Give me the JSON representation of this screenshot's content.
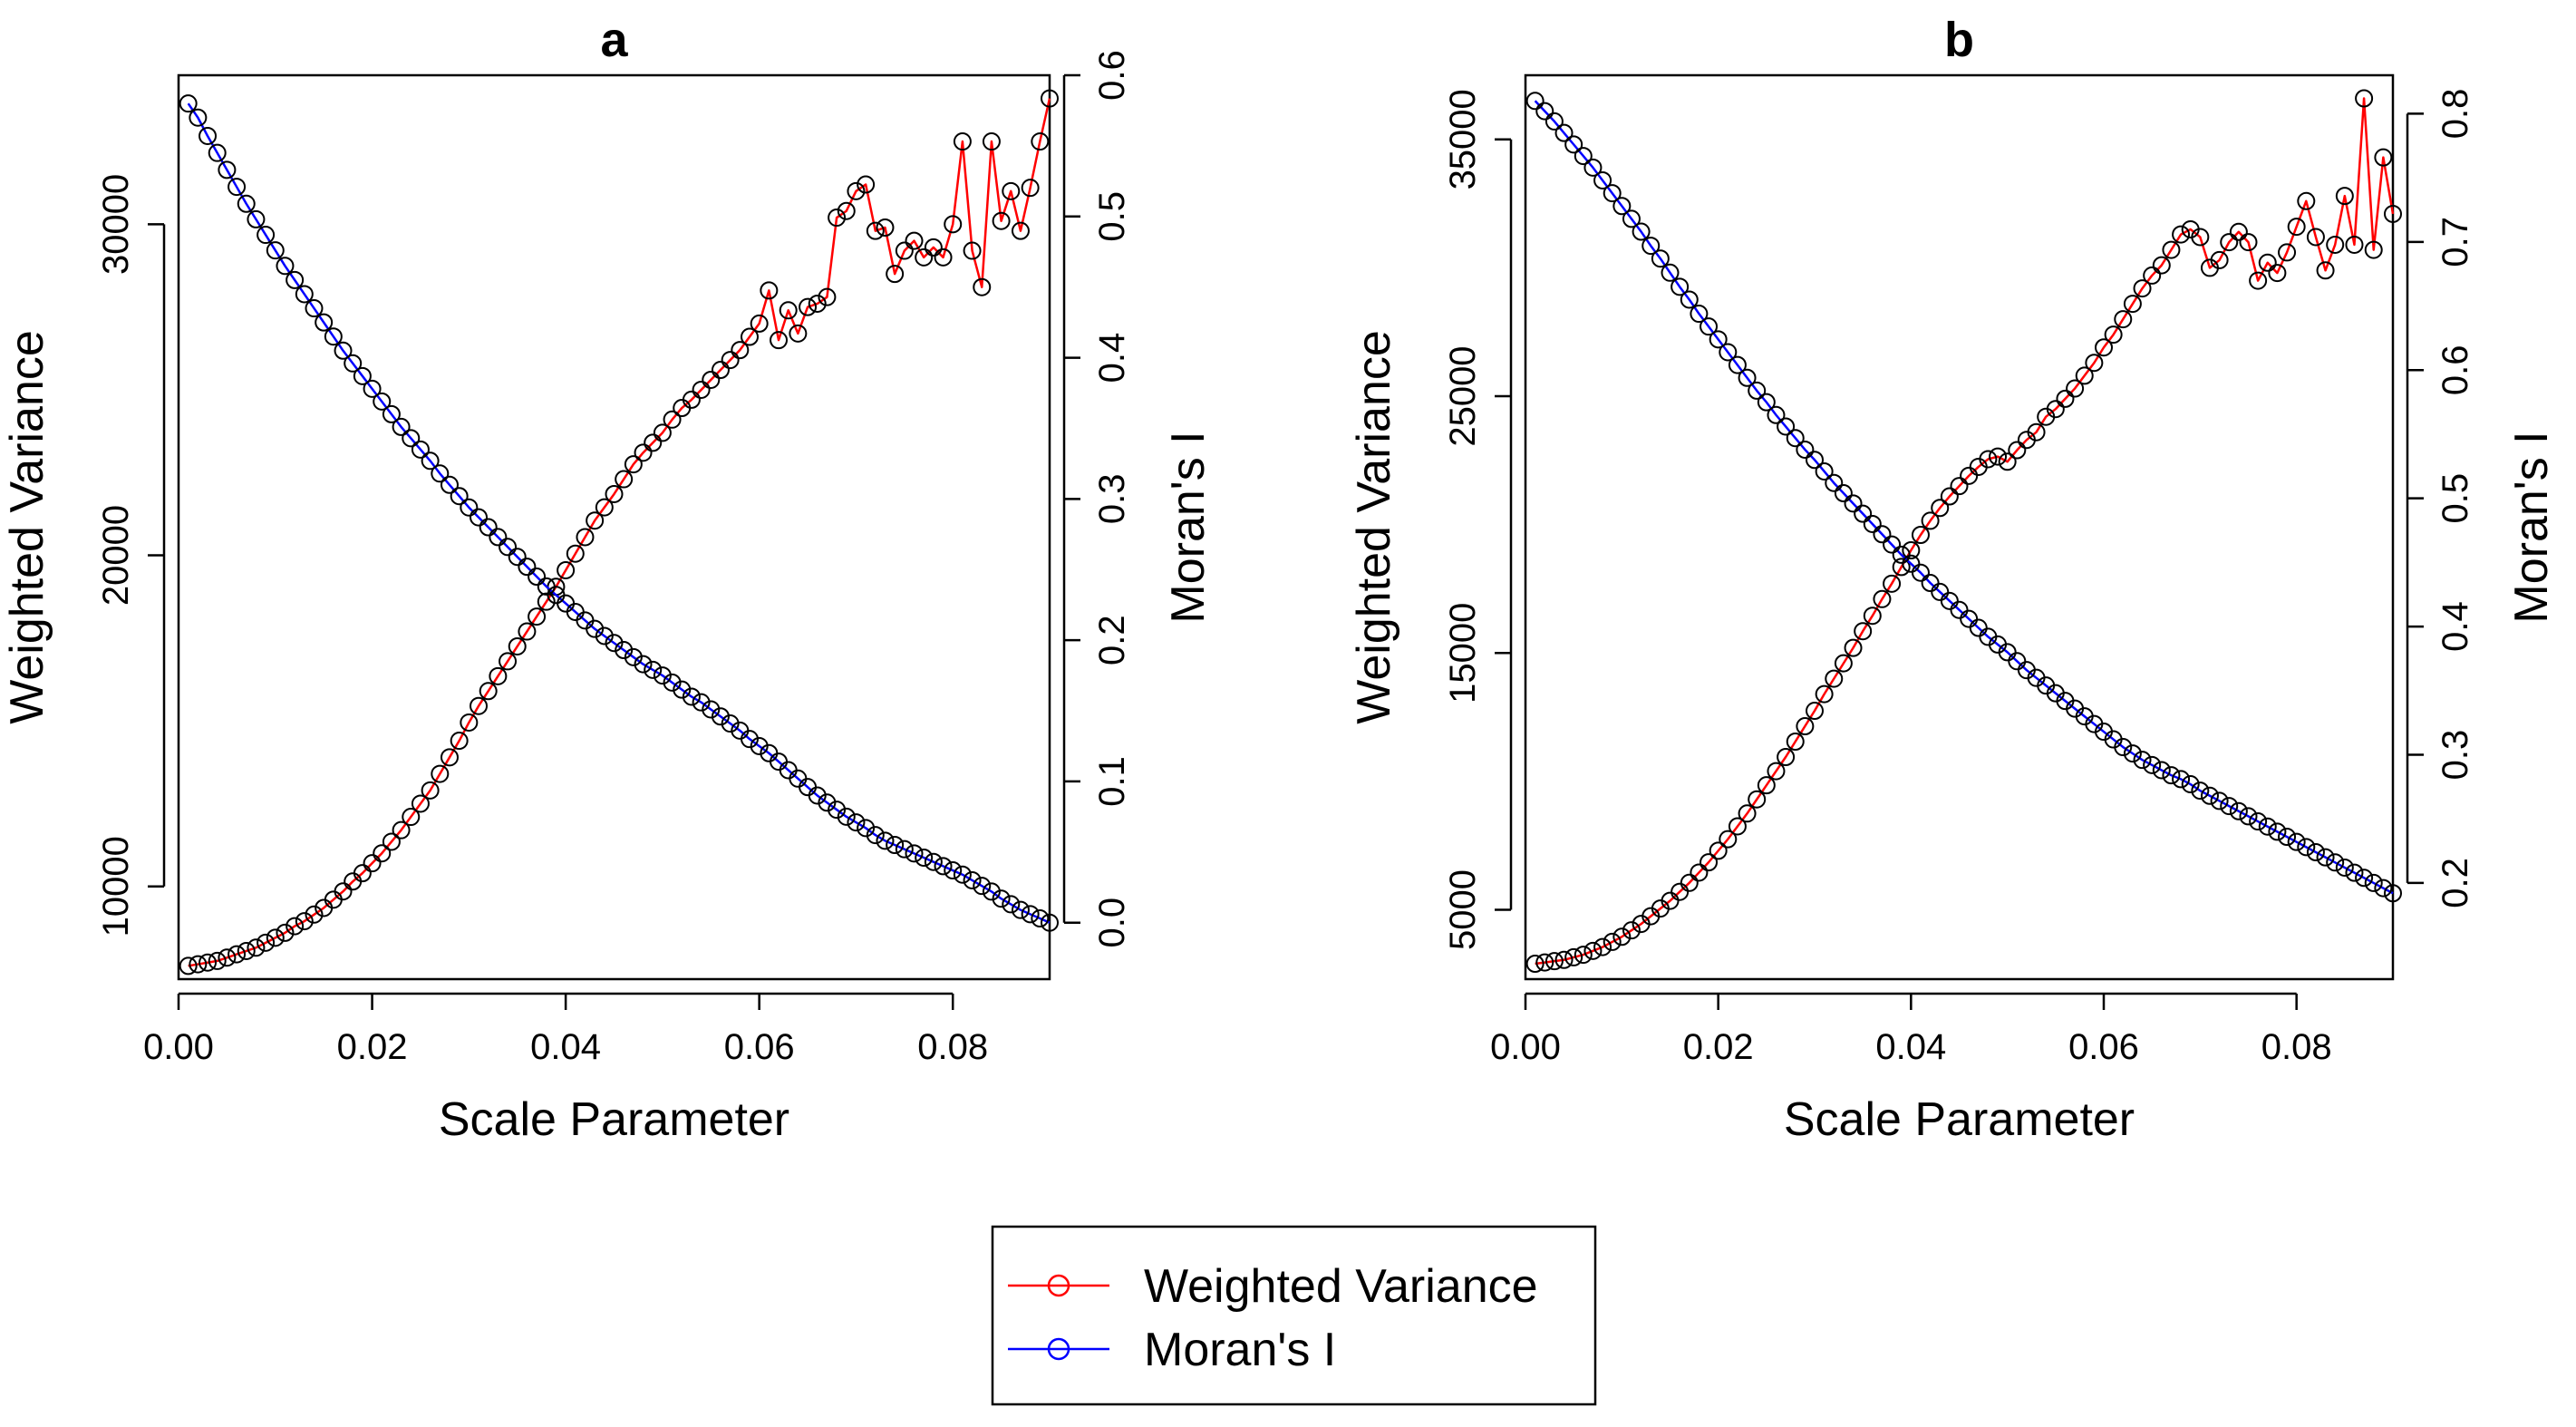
{
  "figure": {
    "legend": {
      "entries": [
        {
          "label": "Weighted Variance",
          "color": "#ff0000"
        },
        {
          "label": "Moran's I",
          "color": "#0000ff"
        }
      ],
      "placement": "bottom-center"
    }
  },
  "chart_data": [
    {
      "type": "line",
      "title": "a",
      "xlabel": "Scale Parameter",
      "ylabel": "Weighted Variance",
      "y2label": "Moran's I",
      "xlim": [
        0,
        0.09
      ],
      "ylim": [
        7200,
        34500
      ],
      "y2lim": [
        -0.04,
        0.6
      ],
      "x_ticks": [
        "0.00",
        "0.02",
        "0.04",
        "0.06",
        "0.08"
      ],
      "y_ticks": [
        "10000",
        "20000",
        "30000"
      ],
      "y2_ticks": [
        "0.0",
        "0.1",
        "0.2",
        "0.3",
        "0.4",
        "0.5",
        "0.6"
      ],
      "grid": false,
      "marker_edge_color": "#000000",
      "series": [
        {
          "name": "Weighted Variance",
          "axis": "left",
          "color": "#ff0000",
          "x": [
            0.001,
            0.002,
            0.003,
            0.004,
            0.005,
            0.006,
            0.007,
            0.008,
            0.009,
            0.01,
            0.011,
            0.012,
            0.013,
            0.014,
            0.015,
            0.016,
            0.017,
            0.018,
            0.019,
            0.02,
            0.021,
            0.022,
            0.023,
            0.024,
            0.025,
            0.026,
            0.027,
            0.028,
            0.029,
            0.03,
            0.031,
            0.032,
            0.033,
            0.034,
            0.035,
            0.036,
            0.037,
            0.038,
            0.039,
            0.04,
            0.041,
            0.042,
            0.043,
            0.044,
            0.045,
            0.046,
            0.047,
            0.048,
            0.049,
            0.05,
            0.051,
            0.052,
            0.053,
            0.054,
            0.055,
            0.056,
            0.057,
            0.058,
            0.059,
            0.06,
            0.061,
            0.062,
            0.063,
            0.064,
            0.065,
            0.066,
            0.067,
            0.068,
            0.069,
            0.07,
            0.071,
            0.072,
            0.073,
            0.074,
            0.075,
            0.076,
            0.077,
            0.078,
            0.079,
            0.08,
            0.081,
            0.082,
            0.083,
            0.084,
            0.085,
            0.086,
            0.087,
            0.088,
            0.089,
            0.09
          ],
          "values": [
            7600,
            7650,
            7700,
            7750,
            7850,
            7950,
            8050,
            8150,
            8300,
            8450,
            8600,
            8800,
            8950,
            9150,
            9350,
            9600,
            9850,
            10150,
            10400,
            10700,
            11000,
            11350,
            11700,
            12100,
            12500,
            12900,
            13400,
            13900,
            14400,
            14950,
            15450,
            15900,
            16350,
            16800,
            17250,
            17700,
            18150,
            18600,
            19050,
            19550,
            20050,
            20550,
            21050,
            21450,
            21850,
            22300,
            22750,
            23100,
            23400,
            23700,
            24100,
            24450,
            24700,
            25000,
            25300,
            25600,
            25900,
            26200,
            26600,
            27000,
            28000,
            26500,
            27400,
            26700,
            27500,
            27600,
            27800,
            30200,
            30400,
            31000,
            31200,
            29800,
            29900,
            28500,
            29200,
            29500,
            29000,
            29300,
            29000,
            30000,
            32500,
            29200,
            28100,
            32500,
            30100,
            31000,
            29800,
            31100,
            32500,
            33800
          ]
        },
        {
          "name": "Moran's I",
          "axis": "right",
          "color": "#0000ff",
          "x": [
            0.001,
            0.002,
            0.003,
            0.004,
            0.005,
            0.006,
            0.007,
            0.008,
            0.009,
            0.01,
            0.011,
            0.012,
            0.013,
            0.014,
            0.015,
            0.016,
            0.017,
            0.018,
            0.019,
            0.02,
            0.021,
            0.022,
            0.023,
            0.024,
            0.025,
            0.026,
            0.027,
            0.028,
            0.029,
            0.03,
            0.031,
            0.032,
            0.033,
            0.034,
            0.035,
            0.036,
            0.037,
            0.038,
            0.039,
            0.04,
            0.041,
            0.042,
            0.043,
            0.044,
            0.045,
            0.046,
            0.047,
            0.048,
            0.049,
            0.05,
            0.051,
            0.052,
            0.053,
            0.054,
            0.055,
            0.056,
            0.057,
            0.058,
            0.059,
            0.06,
            0.061,
            0.062,
            0.063,
            0.064,
            0.065,
            0.066,
            0.067,
            0.068,
            0.069,
            0.07,
            0.071,
            0.072,
            0.073,
            0.074,
            0.075,
            0.076,
            0.077,
            0.078,
            0.079,
            0.08,
            0.081,
            0.082,
            0.083,
            0.084,
            0.085,
            0.086,
            0.087,
            0.088,
            0.089,
            0.09
          ],
          "values": [
            0.58,
            0.57,
            0.557,
            0.545,
            0.533,
            0.521,
            0.509,
            0.498,
            0.487,
            0.476,
            0.465,
            0.455,
            0.445,
            0.435,
            0.425,
            0.415,
            0.405,
            0.396,
            0.387,
            0.378,
            0.369,
            0.36,
            0.351,
            0.343,
            0.335,
            0.327,
            0.318,
            0.31,
            0.302,
            0.294,
            0.287,
            0.28,
            0.273,
            0.266,
            0.259,
            0.252,
            0.245,
            0.238,
            0.232,
            0.226,
            0.22,
            0.214,
            0.208,
            0.203,
            0.198,
            0.193,
            0.188,
            0.183,
            0.179,
            0.175,
            0.17,
            0.165,
            0.16,
            0.156,
            0.151,
            0.146,
            0.141,
            0.136,
            0.13,
            0.125,
            0.12,
            0.114,
            0.108,
            0.102,
            0.096,
            0.09,
            0.085,
            0.08,
            0.075,
            0.071,
            0.067,
            0.062,
            0.058,
            0.055,
            0.052,
            0.049,
            0.046,
            0.043,
            0.04,
            0.037,
            0.034,
            0.03,
            0.026,
            0.022,
            0.017,
            0.013,
            0.009,
            0.006,
            0.003,
            0.0
          ]
        }
      ]
    },
    {
      "type": "line",
      "title": "b",
      "xlabel": "Scale Parameter",
      "ylabel": "Weighted Variance",
      "y2label": "Moran's I",
      "xlim": [
        0,
        0.09
      ],
      "ylim": [
        2300,
        37500
      ],
      "y2lim": [
        0.125,
        0.83
      ],
      "x_ticks": [
        "0.00",
        "0.02",
        "0.04",
        "0.06",
        "0.08"
      ],
      "y_ticks": [
        "5000",
        "15000",
        "25000",
        "35000"
      ],
      "y2_ticks": [
        "0.2",
        "0.3",
        "0.4",
        "0.5",
        "0.6",
        "0.7",
        "0.8"
      ],
      "grid": false,
      "marker_edge_color": "#000000",
      "series": [
        {
          "name": "Weighted Variance",
          "axis": "left",
          "color": "#ff0000",
          "x": [
            0.001,
            0.002,
            0.003,
            0.004,
            0.005,
            0.006,
            0.007,
            0.008,
            0.009,
            0.01,
            0.011,
            0.012,
            0.013,
            0.014,
            0.015,
            0.016,
            0.017,
            0.018,
            0.019,
            0.02,
            0.021,
            0.022,
            0.023,
            0.024,
            0.025,
            0.026,
            0.027,
            0.028,
            0.029,
            0.03,
            0.031,
            0.032,
            0.033,
            0.034,
            0.035,
            0.036,
            0.037,
            0.038,
            0.039,
            0.04,
            0.041,
            0.042,
            0.043,
            0.044,
            0.045,
            0.046,
            0.047,
            0.048,
            0.049,
            0.05,
            0.051,
            0.052,
            0.053,
            0.054,
            0.055,
            0.056,
            0.057,
            0.058,
            0.059,
            0.06,
            0.061,
            0.062,
            0.063,
            0.064,
            0.065,
            0.066,
            0.067,
            0.068,
            0.069,
            0.07,
            0.071,
            0.072,
            0.073,
            0.074,
            0.075,
            0.076,
            0.077,
            0.078,
            0.079,
            0.08,
            0.081,
            0.082,
            0.083,
            0.084,
            0.085,
            0.086,
            0.087,
            0.088,
            0.089,
            0.09
          ],
          "values": [
            2900,
            2950,
            3000,
            3050,
            3150,
            3250,
            3400,
            3550,
            3750,
            3950,
            4200,
            4450,
            4750,
            5050,
            5350,
            5700,
            6050,
            6450,
            6850,
            7300,
            7750,
            8250,
            8750,
            9300,
            9850,
            10400,
            10950,
            11550,
            12150,
            12750,
            13400,
            14000,
            14600,
            15200,
            15850,
            16450,
            17100,
            17700,
            18350,
            19000,
            19600,
            20150,
            20650,
            21100,
            21500,
            21900,
            22250,
            22550,
            22650,
            22450,
            22900,
            23300,
            23600,
            24200,
            24500,
            24900,
            25300,
            25800,
            26300,
            26900,
            27400,
            28000,
            28600,
            29200,
            29700,
            30100,
            30700,
            31300,
            31500,
            31200,
            30000,
            30300,
            31000,
            31400,
            31000,
            29500,
            30200,
            29800,
            30600,
            31600,
            32600,
            31200,
            29900,
            30900,
            32800,
            30900,
            36600,
            30700,
            34300,
            32100
          ]
        },
        {
          "name": "Moran's I",
          "axis": "right",
          "color": "#0000ff",
          "x": [
            0.001,
            0.002,
            0.003,
            0.004,
            0.005,
            0.006,
            0.007,
            0.008,
            0.009,
            0.01,
            0.011,
            0.012,
            0.013,
            0.014,
            0.015,
            0.016,
            0.017,
            0.018,
            0.019,
            0.02,
            0.021,
            0.022,
            0.023,
            0.024,
            0.025,
            0.026,
            0.027,
            0.028,
            0.029,
            0.03,
            0.031,
            0.032,
            0.033,
            0.034,
            0.035,
            0.036,
            0.037,
            0.038,
            0.039,
            0.04,
            0.041,
            0.042,
            0.043,
            0.044,
            0.045,
            0.046,
            0.047,
            0.048,
            0.049,
            0.05,
            0.051,
            0.052,
            0.053,
            0.054,
            0.055,
            0.056,
            0.057,
            0.058,
            0.059,
            0.06,
            0.061,
            0.062,
            0.063,
            0.064,
            0.065,
            0.066,
            0.067,
            0.068,
            0.069,
            0.07,
            0.071,
            0.072,
            0.073,
            0.074,
            0.075,
            0.076,
            0.077,
            0.078,
            0.079,
            0.08,
            0.081,
            0.082,
            0.083,
            0.084,
            0.085,
            0.086,
            0.087,
            0.088,
            0.089,
            0.09
          ],
          "values": [
            0.81,
            0.802,
            0.794,
            0.785,
            0.776,
            0.767,
            0.758,
            0.748,
            0.738,
            0.728,
            0.718,
            0.708,
            0.697,
            0.687,
            0.676,
            0.665,
            0.655,
            0.644,
            0.634,
            0.624,
            0.614,
            0.604,
            0.594,
            0.584,
            0.575,
            0.565,
            0.556,
            0.547,
            0.538,
            0.53,
            0.521,
            0.512,
            0.504,
            0.496,
            0.488,
            0.48,
            0.472,
            0.464,
            0.456,
            0.449,
            0.442,
            0.434,
            0.427,
            0.42,
            0.413,
            0.406,
            0.399,
            0.392,
            0.386,
            0.38,
            0.373,
            0.366,
            0.36,
            0.354,
            0.348,
            0.342,
            0.336,
            0.33,
            0.324,
            0.318,
            0.312,
            0.306,
            0.301,
            0.296,
            0.292,
            0.288,
            0.284,
            0.281,
            0.277,
            0.272,
            0.268,
            0.264,
            0.26,
            0.256,
            0.252,
            0.248,
            0.244,
            0.24,
            0.236,
            0.232,
            0.228,
            0.224,
            0.22,
            0.216,
            0.212,
            0.208,
            0.204,
            0.2,
            0.196,
            0.192
          ]
        }
      ]
    }
  ]
}
